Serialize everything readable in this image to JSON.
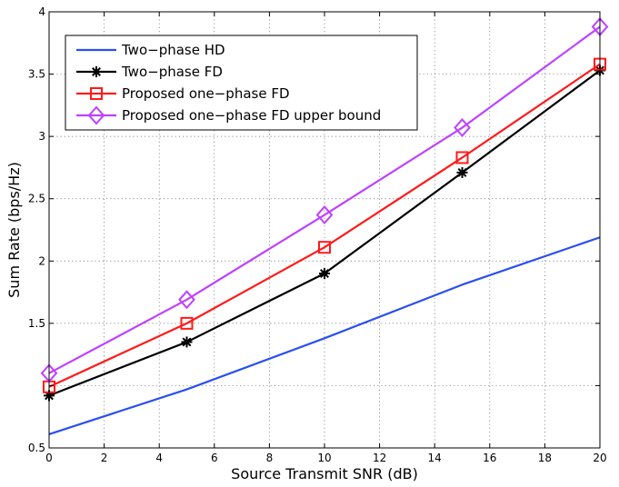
{
  "chart_data": {
    "type": "line",
    "title": "",
    "xlabel": "Source Transmit SNR (dB)",
    "ylabel": "Sum Rate (bps/Hz)",
    "xlim": [
      0,
      20
    ],
    "ylim": [
      0.5,
      4
    ],
    "xticks": [
      0,
      2,
      4,
      6,
      8,
      10,
      12,
      14,
      16,
      18,
      20
    ],
    "yticks": [
      0.5,
      1,
      1.5,
      2,
      2.5,
      3,
      3.5,
      4
    ],
    "ytick_labels": [
      "0.5",
      "",
      "1.5",
      "2",
      "2.5",
      "3",
      "3.5",
      "4"
    ],
    "grid": true,
    "legend_position": "top-left",
    "series": [
      {
        "name": "Two−phase HD",
        "color": "#2a4ff0",
        "marker": "none",
        "x": [
          0,
          5,
          10,
          15,
          20
        ],
        "values": [
          0.61,
          0.97,
          1.38,
          1.81,
          2.19
        ]
      },
      {
        "name": "Two−phase FD",
        "color": "#000000",
        "marker": "asterisk",
        "x": [
          0,
          5,
          10,
          15,
          20
        ],
        "values": [
          0.92,
          1.35,
          1.9,
          2.71,
          3.53
        ]
      },
      {
        "name": "Proposed one−phase FD",
        "color": "#ff1a1a",
        "marker": "square",
        "x": [
          0,
          5,
          10,
          15,
          20
        ],
        "values": [
          0.99,
          1.5,
          2.11,
          2.83,
          3.58
        ]
      },
      {
        "name": "Proposed one−phase FD upper bound",
        "color": "#bf40ff",
        "marker": "diamond",
        "x": [
          0,
          5,
          10,
          15,
          20
        ],
        "values": [
          1.1,
          1.69,
          2.37,
          3.07,
          3.88
        ]
      }
    ]
  }
}
